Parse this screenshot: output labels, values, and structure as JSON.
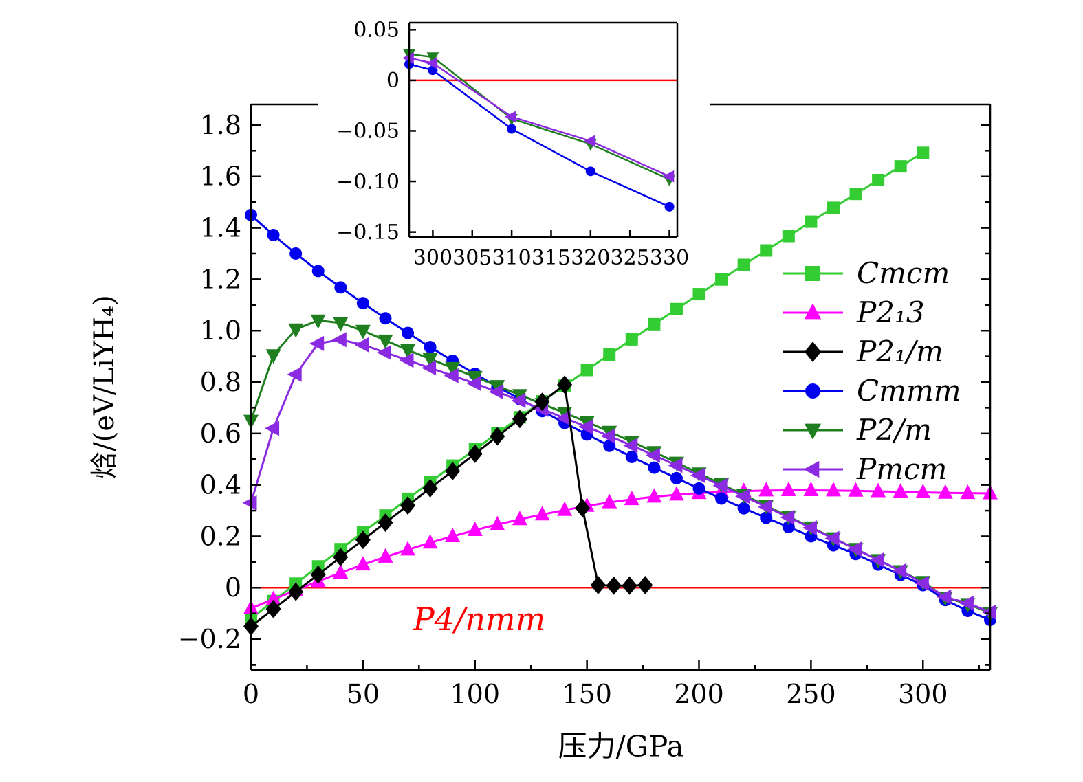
{
  "chart_data": {
    "type": "line",
    "title": "",
    "ref_color": "#ff0000",
    "main": {
      "xlabel": "压力/GPa",
      "ylabel": "焓/(eV/LiYH₄)",
      "annotation": {
        "text": "P4/nmm",
        "color": "#ff0000"
      },
      "xlim": [
        0,
        330
      ],
      "ylim": [
        -0.32,
        1.88
      ],
      "refline_y": 0,
      "xticks": [
        {
          "v": 0,
          "label": "0"
        },
        {
          "v": 50,
          "label": "50"
        },
        {
          "v": 100,
          "label": "100"
        },
        {
          "v": 150,
          "label": "150"
        },
        {
          "v": 200,
          "label": "200"
        },
        {
          "v": 250,
          "label": "250"
        },
        {
          "v": 300,
          "label": "300"
        }
      ],
      "x_minor": [
        25,
        75,
        125,
        175,
        225,
        275,
        325
      ],
      "yticks": [
        {
          "v": -0.2,
          "label": "−0.2"
        },
        {
          "v": 0,
          "label": "0"
        },
        {
          "v": 0.2,
          "label": "0.2"
        },
        {
          "v": 0.4,
          "label": "0.4"
        },
        {
          "v": 0.6,
          "label": "0.6"
        },
        {
          "v": 0.8,
          "label": "0.8"
        },
        {
          "v": 1.0,
          "label": "1.0"
        },
        {
          "v": 1.2,
          "label": "1.2"
        },
        {
          "v": 1.4,
          "label": "1.4"
        },
        {
          "v": 1.6,
          "label": "1.6"
        },
        {
          "v": 1.8,
          "label": "1.8"
        }
      ],
      "y_minor": [
        -0.3,
        -0.1,
        0.1,
        0.3,
        0.5,
        0.7,
        0.9,
        1.1,
        1.3,
        1.5,
        1.7
      ],
      "series": [
        {
          "name": "Cmcm",
          "color": "#33cc33",
          "marker": "square",
          "ms": 9,
          "x": [
            0,
            10,
            20,
            30,
            40,
            50,
            60,
            70,
            80,
            90,
            100,
            110,
            120,
            130,
            140,
            150,
            160,
            170,
            180,
            190,
            200,
            210,
            220,
            230,
            240,
            250,
            260,
            270,
            280,
            290,
            300
          ],
          "y": [
            -0.12,
            -0.052,
            0.016,
            0.083,
            0.15,
            0.216,
            0.281,
            0.346,
            0.411,
            0.475,
            0.538,
            0.601,
            0.663,
            0.725,
            0.786,
            0.847,
            0.907,
            0.966,
            1.025,
            1.084,
            1.142,
            1.199,
            1.256,
            1.312,
            1.368,
            1.424,
            1.478,
            1.532,
            1.586,
            1.639,
            1.692
          ]
        },
        {
          "name": "P2₁3",
          "color": "#ff00ff",
          "marker": "triangle-up",
          "ms": 10,
          "x": [
            0,
            10,
            20,
            30,
            40,
            50,
            60,
            70,
            80,
            90,
            100,
            110,
            120,
            130,
            140,
            150,
            160,
            170,
            180,
            190,
            200,
            210,
            220,
            230,
            240,
            250,
            260,
            270,
            280,
            290,
            300,
            310,
            320,
            330
          ],
          "y": [
            -0.08,
            -0.045,
            -0.01,
            0.025,
            0.058,
            0.09,
            0.12,
            0.148,
            0.175,
            0.2,
            0.224,
            0.246,
            0.266,
            0.285,
            0.302,
            0.318,
            0.332,
            0.344,
            0.354,
            0.362,
            0.368,
            0.373,
            0.376,
            0.378,
            0.379,
            0.379,
            0.378,
            0.377,
            0.375,
            0.373,
            0.371,
            0.369,
            0.368,
            0.367
          ]
        },
        {
          "name": "Cmmm",
          "color": "#0000ee",
          "marker": "circle",
          "ms": 9,
          "x": [
            0,
            10,
            20,
            30,
            40,
            50,
            60,
            70,
            80,
            90,
            100,
            110,
            120,
            130,
            140,
            150,
            160,
            170,
            180,
            190,
            200,
            210,
            220,
            230,
            240,
            250,
            260,
            270,
            280,
            290,
            300,
            310,
            320,
            330
          ],
          "y": [
            1.45,
            1.372,
            1.3,
            1.232,
            1.168,
            1.107,
            1.048,
            0.991,
            0.936,
            0.883,
            0.832,
            0.782,
            0.734,
            0.687,
            0.641,
            0.596,
            0.552,
            0.509,
            0.467,
            0.426,
            0.386,
            0.347,
            0.309,
            0.272,
            0.236,
            0.2,
            0.165,
            0.131,
            0.09,
            0.05,
            0.01,
            -0.048,
            -0.09,
            -0.125
          ]
        },
        {
          "name": "P2/m",
          "color": "#1f7f1f",
          "marker": "triangle-down",
          "ms": 10,
          "x": [
            0,
            10,
            20,
            30,
            40,
            50,
            60,
            70,
            80,
            90,
            100,
            110,
            120,
            130,
            140,
            150,
            160,
            170,
            180,
            190,
            200,
            210,
            220,
            230,
            240,
            250,
            260,
            270,
            280,
            290,
            300,
            310,
            320,
            330
          ],
          "y": [
            0.65,
            0.905,
            1.005,
            1.04,
            1.03,
            1.0,
            0.962,
            0.925,
            0.89,
            0.855,
            0.82,
            0.785,
            0.75,
            0.715,
            0.68,
            0.645,
            0.607,
            0.568,
            0.528,
            0.487,
            0.445,
            0.403,
            0.361,
            0.319,
            0.277,
            0.235,
            0.193,
            0.151,
            0.108,
            0.065,
            0.023,
            -0.038,
            -0.063,
            -0.098
          ]
        },
        {
          "name": "Pmcm",
          "color": "#8a2be2",
          "marker": "triangle-left",
          "ms": 10,
          "x": [
            0,
            10,
            20,
            30,
            40,
            50,
            60,
            70,
            80,
            90,
            100,
            110,
            120,
            130,
            140,
            150,
            160,
            170,
            180,
            190,
            200,
            210,
            220,
            230,
            240,
            250,
            260,
            270,
            280,
            290,
            300,
            310,
            320,
            330
          ],
          "y": [
            0.33,
            0.62,
            0.83,
            0.95,
            0.965,
            0.945,
            0.915,
            0.885,
            0.855,
            0.825,
            0.795,
            0.762,
            0.728,
            0.694,
            0.66,
            0.626,
            0.59,
            0.553,
            0.515,
            0.476,
            0.437,
            0.397,
            0.356,
            0.315,
            0.274,
            0.233,
            0.192,
            0.15,
            0.108,
            0.066,
            0.017,
            -0.036,
            -0.06,
            -0.095
          ]
        },
        {
          "name": "P2₁/m",
          "color": "#000000",
          "marker": "diamond",
          "ms": 10,
          "x": [
            0,
            10,
            20,
            30,
            40,
            50,
            60,
            70,
            80,
            90,
            100,
            110,
            120,
            130,
            140,
            148,
            155,
            162,
            169,
            176
          ],
          "y": [
            -0.15,
            -0.083,
            -0.016,
            0.051,
            0.119,
            0.186,
            0.253,
            0.32,
            0.387,
            0.454,
            0.521,
            0.589,
            0.656,
            0.723,
            0.79,
            0.31,
            0.01,
            0.008,
            0.008,
            0.01
          ]
        }
      ]
    },
    "inset": {
      "xlim": [
        297,
        331
      ],
      "ylim": [
        -0.155,
        0.057
      ],
      "refline_y": 0,
      "xticks": [
        {
          "v": 300,
          "label": "300"
        },
        {
          "v": 305,
          "label": "305"
        },
        {
          "v": 310,
          "label": "310"
        },
        {
          "v": 315,
          "label": "315"
        },
        {
          "v": 320,
          "label": "320"
        },
        {
          "v": 325,
          "label": "325"
        },
        {
          "v": 330,
          "label": "330"
        }
      ],
      "x_minor": [],
      "yticks": [
        {
          "v": 0.05,
          "label": "0.05"
        },
        {
          "v": 0,
          "label": "0"
        },
        {
          "v": -0.05,
          "label": "−0.05"
        },
        {
          "v": -0.1,
          "label": "−0.10"
        },
        {
          "v": -0.15,
          "label": "−0.15"
        }
      ],
      "y_minor": [],
      "series": [
        {
          "name": "P2/m",
          "color": "#1f7f1f",
          "marker": "triangle-down",
          "ms": 8,
          "x": [
            297,
            300,
            310,
            320,
            330
          ],
          "y": [
            0.026,
            0.023,
            -0.038,
            -0.063,
            -0.098
          ]
        },
        {
          "name": "Cmmm",
          "color": "#0000ee",
          "marker": "circle",
          "ms": 7,
          "x": [
            297,
            300,
            310,
            320,
            330
          ],
          "y": [
            0.016,
            0.01,
            -0.048,
            -0.09,
            -0.125
          ]
        },
        {
          "name": "Pmcm",
          "color": "#8a2be2",
          "marker": "triangle-left",
          "ms": 8,
          "x": [
            297,
            300,
            310,
            320,
            330
          ],
          "y": [
            0.022,
            0.017,
            -0.036,
            -0.06,
            -0.095
          ]
        }
      ]
    },
    "legend": [
      {
        "label": "Cmcm",
        "color": "#33cc33",
        "marker": "square"
      },
      {
        "label": "P2₁3",
        "color": "#ff00ff",
        "marker": "triangle-up"
      },
      {
        "label": "P2₁/m",
        "color": "#000000",
        "marker": "diamond"
      },
      {
        "label": "Cmmm",
        "color": "#0000ee",
        "marker": "circle"
      },
      {
        "label": "P2/m",
        "color": "#1f7f1f",
        "marker": "triangle-down"
      },
      {
        "label": "Pmcm",
        "color": "#8a2be2",
        "marker": "triangle-left"
      }
    ]
  }
}
